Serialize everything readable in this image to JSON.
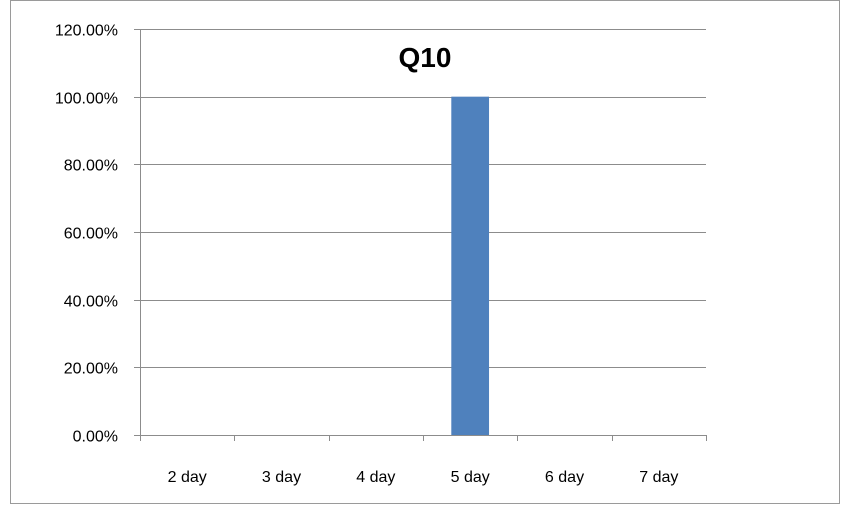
{
  "chart_data": {
    "type": "bar",
    "title": "Q10",
    "categories": [
      "2 day",
      "3 day",
      "4 day",
      "5 day",
      "6 day",
      "7 day"
    ],
    "values": [
      0,
      0,
      0,
      1.0,
      0,
      0
    ],
    "ylim": [
      0,
      1.2
    ],
    "y_ticks": [
      0,
      0.2,
      0.4,
      0.6,
      0.8,
      1.0,
      1.2
    ],
    "y_tick_labels": [
      "0.00%",
      "20.00%",
      "40.00%",
      "60.00%",
      "80.00%",
      "100.00%",
      "120.00%"
    ],
    "xlabel": "",
    "ylabel": "",
    "grid": true,
    "legend": "none",
    "bar_color": "#4F81BD"
  }
}
